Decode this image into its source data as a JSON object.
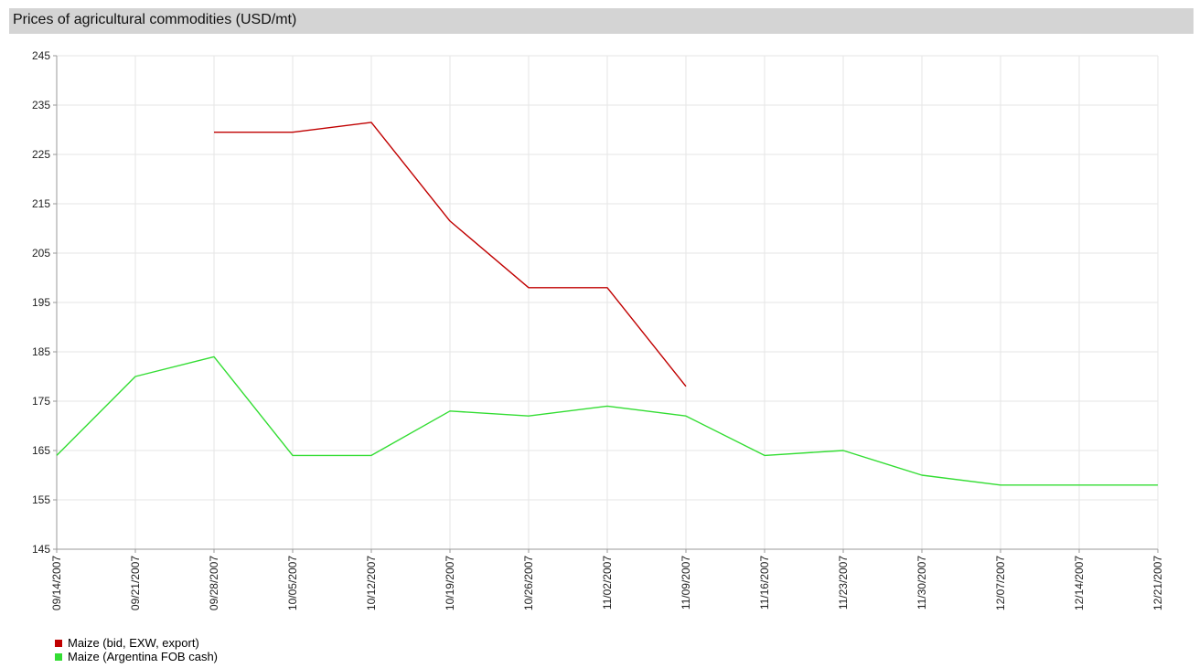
{
  "header": {
    "title": "Prices of agricultural commodities (USD/mt)"
  },
  "colors": {
    "series_red": "#c00000",
    "series_green": "#33dd33",
    "grid": "#e6e6e6",
    "axis": "#999999",
    "header_bg": "#d4d4d4"
  },
  "chart_data": {
    "type": "line",
    "title": "Prices of agricultural commodities (USD/mt)",
    "categories": [
      "09/14/2007",
      "09/21/2007",
      "09/28/2007",
      "10/05/2007",
      "10/12/2007",
      "10/19/2007",
      "10/26/2007",
      "11/02/2007",
      "11/09/2007",
      "11/16/2007",
      "11/23/2007",
      "11/30/2007",
      "12/07/2007",
      "12/14/2007",
      "12/21/2007"
    ],
    "series": [
      {
        "name": "Maize (bid, EXW, export)",
        "color": "#c00000",
        "values": [
          null,
          null,
          229.5,
          229.5,
          231.5,
          211.5,
          198,
          198,
          178,
          null,
          null,
          null,
          null,
          null,
          null
        ]
      },
      {
        "name": "Maize (Argentina  FOB cash)",
        "color": "#33dd33",
        "values": [
          164,
          180,
          184,
          164,
          164,
          173,
          172,
          174,
          172,
          164,
          165,
          160,
          158,
          158,
          158
        ]
      }
    ],
    "ylim": [
      145,
      245
    ],
    "yticks": [
      145,
      155,
      165,
      175,
      185,
      195,
      205,
      215,
      225,
      235,
      245
    ],
    "grid": true,
    "legend_position": "bottom-left",
    "xlabel": "",
    "ylabel": ""
  }
}
